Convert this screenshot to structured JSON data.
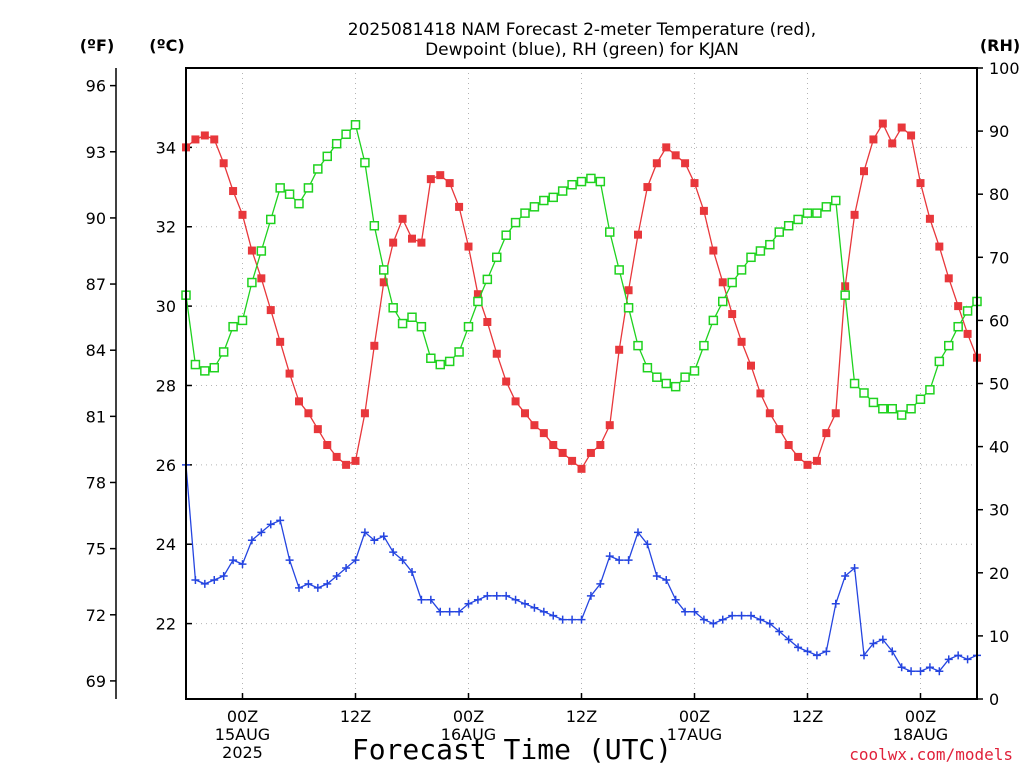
{
  "colors": {
    "temperature": "#e8373b",
    "dewpoint": "#2545e0",
    "rh": "#1fd21f",
    "credit": "#e0213a",
    "grid": "#b4b4b4"
  },
  "chart_data": {
    "type": "line",
    "title_line1": "2025081418 NAM Forecast 2-meter Temperature (red),",
    "title_line2": "Dewpoint (blue), RH (green) for KJAN",
    "xlabel": "Forecast Time (UTC)",
    "credit": "coolwx.com/models",
    "units": {
      "fahrenheit": "(ºF)",
      "celsius": "(ºC)",
      "rh": "(RH)"
    },
    "x_unit": "hours since 2025-08-14 18Z",
    "x_range": [
      18,
      102
    ],
    "x_ticks": [
      {
        "x": 24,
        "line1": "00Z",
        "line2": "15AUG",
        "line3": "2025"
      },
      {
        "x": 36,
        "line1": "12Z",
        "line2": "",
        "line3": ""
      },
      {
        "x": 48,
        "line1": "00Z",
        "line2": "16AUG",
        "line3": ""
      },
      {
        "x": 60,
        "line1": "12Z",
        "line2": "",
        "line3": ""
      },
      {
        "x": 72,
        "line1": "00Z",
        "line2": "17AUG",
        "line3": ""
      },
      {
        "x": 84,
        "line1": "12Z",
        "line2": "",
        "line3": ""
      },
      {
        "x": 96,
        "line1": "00Z",
        "line2": "18AUG",
        "line3": ""
      }
    ],
    "y_left_celsius": {
      "range": [
        20.1,
        36.0
      ],
      "ticks": [
        "22",
        "24",
        "26",
        "28",
        "30",
        "32",
        "34"
      ]
    },
    "y_left_fahrenheit": {
      "ticks": [
        {
          "label": "69",
          "value_c": 20.556
        },
        {
          "label": "72",
          "value_c": 22.222
        },
        {
          "label": "75",
          "value_c": 23.889
        },
        {
          "label": "78",
          "value_c": 25.556
        },
        {
          "label": "81",
          "value_c": 27.222
        },
        {
          "label": "84",
          "value_c": 28.889
        },
        {
          "label": "87",
          "value_c": 30.556
        },
        {
          "label": "90",
          "value_c": 32.222
        },
        {
          "label": "93",
          "value_c": 33.889
        },
        {
          "label": "96",
          "value_c": 35.556
        }
      ]
    },
    "y_right_rh": {
      "range": [
        0,
        100
      ],
      "ticks": [
        "0",
        "10",
        "20",
        "30",
        "40",
        "50",
        "60",
        "70",
        "80",
        "90",
        "100"
      ]
    },
    "series": [
      {
        "name": "Temperature (red)",
        "axis": "celsius",
        "marker": "filled-square",
        "x": [
          18,
          19,
          20,
          21,
          22,
          23,
          24,
          25,
          26,
          27,
          28,
          29,
          30,
          31,
          32,
          33,
          34,
          35,
          36,
          37,
          38,
          39,
          40,
          41,
          42,
          43,
          44,
          45,
          46,
          47,
          48,
          49,
          50,
          51,
          52,
          53,
          54,
          55,
          56,
          57,
          58,
          59,
          60,
          61,
          62,
          63,
          64,
          65,
          66,
          67,
          68,
          69,
          70,
          71,
          72,
          73,
          74,
          75,
          76,
          77,
          78,
          79,
          80,
          81,
          82,
          83,
          84,
          85,
          86,
          87,
          88,
          89,
          90,
          91,
          92,
          93,
          94,
          95,
          96,
          97,
          98,
          99,
          100,
          101,
          102
        ],
        "values": [
          34.0,
          34.2,
          34.3,
          34.2,
          33.6,
          32.9,
          32.3,
          31.4,
          30.7,
          29.9,
          29.1,
          28.3,
          27.6,
          27.3,
          26.9,
          26.5,
          26.2,
          26.0,
          26.1,
          27.3,
          29.0,
          30.6,
          31.6,
          32.2,
          31.7,
          31.6,
          33.2,
          33.3,
          33.1,
          32.5,
          31.5,
          30.3,
          29.6,
          28.8,
          28.1,
          27.6,
          27.3,
          27.0,
          26.8,
          26.5,
          26.3,
          26.1,
          25.9,
          26.3,
          26.5,
          27.0,
          28.9,
          30.4,
          31.8,
          33.0,
          33.6,
          34.0,
          33.8,
          33.6,
          33.1,
          32.4,
          31.4,
          30.6,
          29.8,
          29.1,
          28.5,
          27.8,
          27.3,
          26.9,
          26.5,
          26.2,
          26.0,
          26.1,
          26.8,
          27.3,
          30.5,
          32.3,
          33.4,
          34.2,
          34.6,
          34.1,
          34.5,
          34.3,
          33.1,
          32.2,
          31.5,
          30.7,
          30.0,
          29.3,
          28.7
        ]
      },
      {
        "name": "Dewpoint (blue)",
        "axis": "celsius",
        "marker": "plus",
        "x": [
          18,
          19,
          20,
          21,
          22,
          23,
          24,
          25,
          26,
          27,
          28,
          29,
          30,
          31,
          32,
          33,
          34,
          35,
          36,
          37,
          38,
          39,
          40,
          41,
          42,
          43,
          44,
          45,
          46,
          47,
          48,
          49,
          50,
          51,
          52,
          53,
          54,
          55,
          56,
          57,
          58,
          59,
          60,
          61,
          62,
          63,
          64,
          65,
          66,
          67,
          68,
          69,
          70,
          71,
          72,
          73,
          74,
          75,
          76,
          77,
          78,
          79,
          80,
          81,
          82,
          83,
          84,
          85,
          86,
          87,
          88,
          89,
          90,
          91,
          92,
          93,
          94,
          95,
          96,
          97,
          98,
          99,
          100,
          101,
          102
        ],
        "values": [
          26.0,
          23.1,
          23.0,
          23.1,
          23.2,
          23.6,
          23.5,
          24.1,
          24.3,
          24.5,
          24.6,
          23.6,
          22.9,
          23.0,
          22.9,
          23.0,
          23.2,
          23.4,
          23.6,
          24.3,
          24.1,
          24.2,
          23.8,
          23.6,
          23.3,
          22.6,
          22.6,
          22.3,
          22.3,
          22.3,
          22.5,
          22.6,
          22.7,
          22.7,
          22.7,
          22.6,
          22.5,
          22.4,
          22.3,
          22.2,
          22.1,
          22.1,
          22.1,
          22.7,
          23.0,
          23.7,
          23.6,
          23.6,
          24.3,
          24.0,
          23.2,
          23.1,
          22.6,
          22.3,
          22.3,
          22.1,
          22.0,
          22.1,
          22.2,
          22.2,
          22.2,
          22.1,
          22.0,
          21.8,
          21.6,
          21.4,
          21.3,
          21.2,
          21.3,
          22.5,
          23.2,
          23.4,
          21.2,
          21.5,
          21.6,
          21.3,
          20.9,
          20.8,
          20.8,
          20.9,
          20.8,
          21.1,
          21.2,
          21.1,
          21.2
        ]
      },
      {
        "name": "RH (green)",
        "axis": "rh",
        "marker": "open-square",
        "x": [
          18,
          19,
          20,
          21,
          22,
          23,
          24,
          25,
          26,
          27,
          28,
          29,
          30,
          31,
          32,
          33,
          34,
          35,
          36,
          37,
          38,
          39,
          40,
          41,
          42,
          43,
          44,
          45,
          46,
          47,
          48,
          49,
          50,
          51,
          52,
          53,
          54,
          55,
          56,
          57,
          58,
          59,
          60,
          61,
          62,
          63,
          64,
          65,
          66,
          67,
          68,
          69,
          70,
          71,
          72,
          73,
          74,
          75,
          76,
          77,
          78,
          79,
          80,
          81,
          82,
          83,
          84,
          85,
          86,
          87,
          88,
          89,
          90,
          91,
          92,
          93,
          94,
          95,
          96,
          97,
          98,
          99,
          100,
          101,
          102
        ],
        "values": [
          64,
          53,
          52,
          52.5,
          55,
          59,
          60,
          66,
          71,
          76,
          81,
          80,
          78.5,
          81,
          84,
          86,
          88,
          89.5,
          91,
          85,
          75,
          68,
          62,
          59.5,
          60.5,
          59,
          54,
          53,
          53.5,
          55,
          59,
          63,
          66.5,
          70,
          73.5,
          75.5,
          77,
          78,
          79,
          79.5,
          80.5,
          81.5,
          82,
          82.5,
          82,
          74,
          68,
          62,
          56,
          52.5,
          51,
          50,
          49.5,
          51,
          52,
          56,
          60,
          63,
          66,
          68,
          70,
          71,
          72,
          74,
          75,
          76,
          77,
          77,
          78,
          79,
          64,
          50,
          48.5,
          47,
          46,
          46,
          45,
          46,
          47.5,
          49,
          53.5,
          56,
          59,
          61.5,
          63
        ]
      }
    ]
  }
}
